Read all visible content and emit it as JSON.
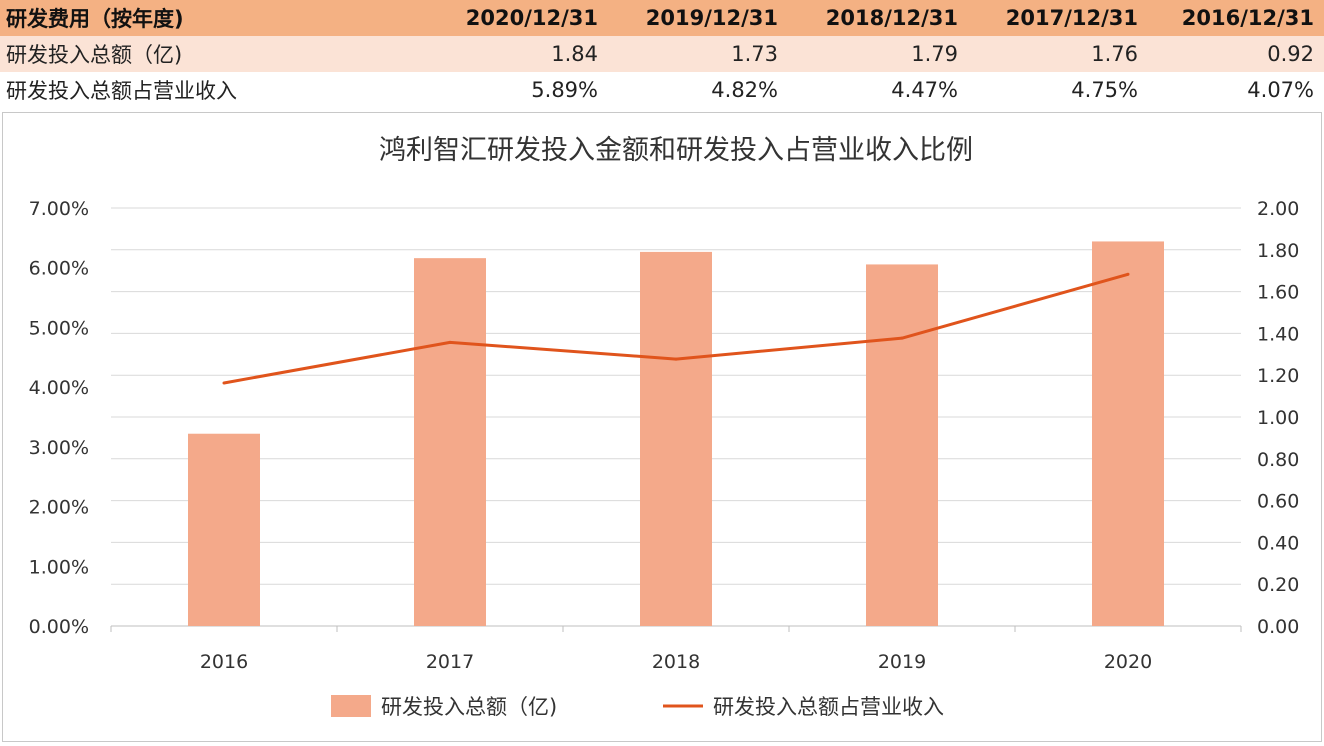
{
  "table": {
    "header": [
      "研发费用（按年度)",
      "2020/12/31",
      "2019/12/31",
      "2018/12/31",
      "2017/12/31",
      "2016/12/31"
    ],
    "rows": [
      {
        "label": "研发投入总额（亿)",
        "values": [
          "1.84",
          "1.73",
          "1.79",
          "1.76",
          "0.92"
        ]
      },
      {
        "label": "研发投入总额占营业收入",
        "values": [
          "5.89%",
          "4.82%",
          "4.47%",
          "4.75%",
          "4.07%"
        ]
      }
    ]
  },
  "colors": {
    "header_bg": "#f4b183",
    "row_bg": "#fbe3d6",
    "bar": "#f4a98a",
    "line": "#e0541c"
  },
  "chart_data": {
    "type": "bar",
    "title": "鸿利智汇研发投入金额和研发投入占营业收入比例",
    "categories": [
      "2016",
      "2017",
      "2018",
      "2019",
      "2020"
    ],
    "series": [
      {
        "name": "研发投入总额（亿)",
        "type": "bar",
        "axis": "right",
        "values": [
          0.92,
          1.76,
          1.79,
          1.73,
          1.84
        ]
      },
      {
        "name": "研发投入总额占营业收入",
        "type": "line",
        "axis": "left",
        "values": [
          4.07,
          4.75,
          4.47,
          4.82,
          5.89
        ]
      }
    ],
    "y_left": {
      "range": [
        0,
        7
      ],
      "ticks": [
        "0.00%",
        "1.00%",
        "2.00%",
        "3.00%",
        "4.00%",
        "5.00%",
        "6.00%",
        "7.00%"
      ]
    },
    "y_right": {
      "range": [
        0,
        2
      ],
      "ticks": [
        "0.00",
        "0.20",
        "0.40",
        "0.60",
        "0.80",
        "1.00",
        "1.20",
        "1.40",
        "1.60",
        "1.80",
        "2.00"
      ]
    },
    "grid": true,
    "legend": "bottom"
  }
}
